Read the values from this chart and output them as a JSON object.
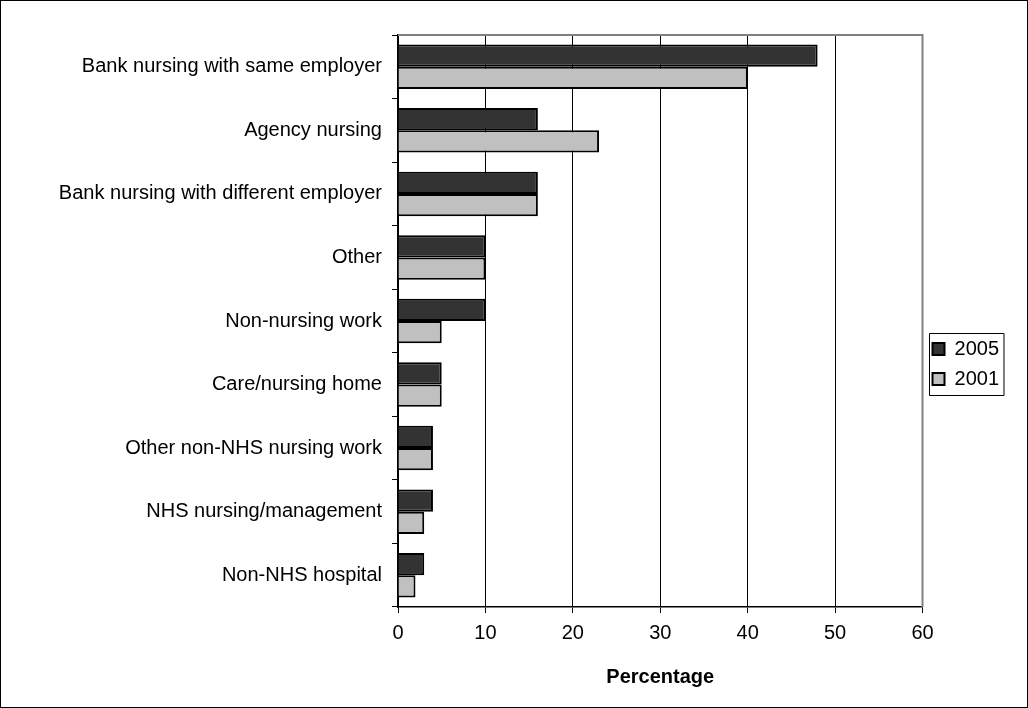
{
  "chart_data": {
    "type": "bar",
    "orientation": "horizontal",
    "xlabel": "Percentage",
    "categories": [
      "Bank nursing with same employer",
      "Agency nursing",
      "Bank nursing with different employer",
      "Other",
      "Non-nursing work",
      "Care/nursing home",
      "Other non-NHS nursing work",
      "NHS nursing/management",
      "Non-NHS hospital"
    ],
    "series": [
      {
        "name": "2005",
        "color": "#333333",
        "values": [
          48,
          16,
          16,
          10,
          10,
          5,
          4,
          4,
          3
        ]
      },
      {
        "name": "2001",
        "color": "#c0c0c0",
        "values": [
          40,
          23,
          16,
          10,
          5,
          5,
          4,
          3,
          2
        ]
      }
    ],
    "xlim": [
      0,
      60
    ],
    "xticks": [
      0,
      10,
      20,
      30,
      40,
      50,
      60
    ],
    "grid": "x",
    "legend": "right"
  }
}
